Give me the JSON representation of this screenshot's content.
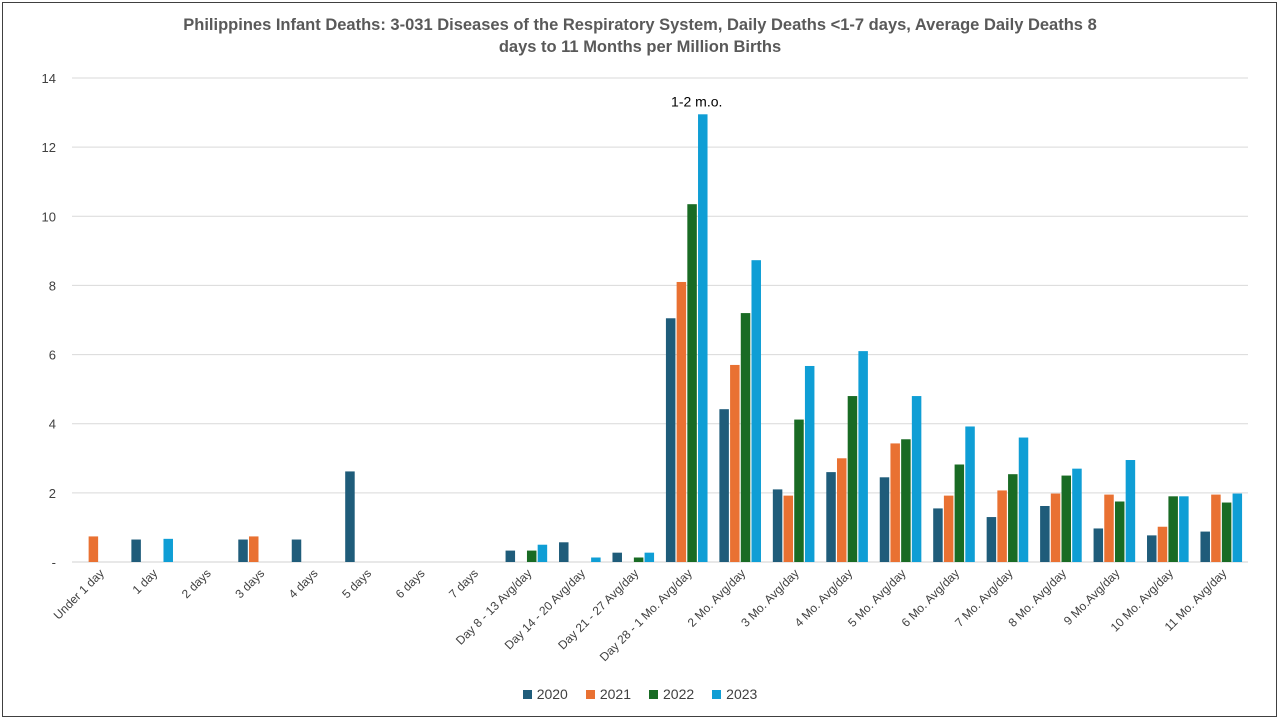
{
  "chart_data": {
    "type": "bar",
    "title": "Philippines Infant Deaths: 3-031 Diseases of the Respiratory System, Daily Deaths <1-7 days, Average Daily Deaths 8\ndays to 11 Months per Million Births",
    "xlabel": "",
    "ylabel": "",
    "ylim": [
      0,
      14
    ],
    "yticks": [
      0,
      2,
      4,
      6,
      8,
      10,
      12,
      14
    ],
    "ytick_labels": [
      "-",
      "2",
      "4",
      "6",
      "8",
      "10",
      "12",
      "14"
    ],
    "grid": true,
    "legend_position": "bottom",
    "categories": [
      "Under 1 day",
      "1 day",
      "2 days",
      "3 days",
      "4 days",
      "5 days",
      "6 days",
      "7 days",
      "Day 8 - 13 Avg/day",
      "Day 14 - 20 Avg/day",
      "Day 21 - 27 Avg/day",
      "Day 28 - 1 Mo. Avg/day",
      "2 Mo. Avg/day",
      "3 Mo. Avg/day",
      "4 Mo. Avg/day",
      "5 Mo. Avg/day",
      "6 Mo. Avg/day",
      "7 Mo. Avg/day",
      "8 Mo. Avg/day",
      "9 Mo.Avg/day",
      "10 Mo. Avg/day",
      "11 Mo. Avg/day"
    ],
    "series": [
      {
        "name": "2020",
        "color": "#1F5C7A",
        "values": [
          0,
          0.65,
          0,
          0.65,
          0.65,
          2.62,
          0,
          0,
          0.33,
          0.57,
          0.27,
          7.05,
          4.42,
          2.1,
          2.6,
          2.45,
          1.55,
          1.3,
          1.62,
          0.97,
          0.77,
          0.88
        ]
      },
      {
        "name": "2021",
        "color": "#E97132",
        "values": [
          0.74,
          0,
          0,
          0.74,
          0,
          0,
          0,
          0,
          0,
          0,
          0,
          8.1,
          5.7,
          1.92,
          3.0,
          3.43,
          1.92,
          2.07,
          1.98,
          1.95,
          1.02,
          1.95
        ]
      },
      {
        "name": "2022",
        "color": "#196B24",
        "values": [
          0,
          0,
          0,
          0,
          0,
          0,
          0,
          0,
          0.33,
          0,
          0.13,
          10.35,
          7.2,
          4.12,
          4.8,
          3.55,
          2.82,
          2.54,
          2.5,
          1.75,
          1.9,
          1.72
        ]
      },
      {
        "name": "2023",
        "color": "#0F9ED5",
        "values": [
          0,
          0.67,
          0,
          0,
          0,
          0,
          0,
          0,
          0.5,
          0.13,
          0.27,
          12.95,
          8.73,
          5.67,
          6.1,
          4.8,
          3.92,
          3.6,
          2.7,
          2.95,
          1.9,
          1.98
        ]
      }
    ],
    "annotations": [
      {
        "text": "1-2 m.o.",
        "category": "Day 28 - 1 Mo. Avg/day"
      }
    ]
  }
}
